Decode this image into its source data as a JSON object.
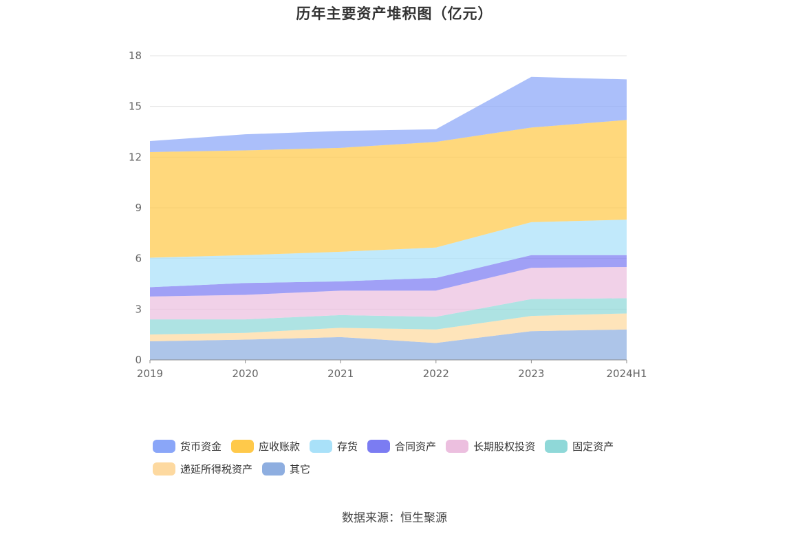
{
  "source": "数据来源：恒生聚源",
  "chart_data": {
    "type": "area",
    "stacked": true,
    "title": "历年主要资产堆积图（亿元）",
    "categories": [
      "2019",
      "2020",
      "2021",
      "2022",
      "2023",
      "2024H1"
    ],
    "yticks": [
      "0",
      "3",
      "6",
      "9",
      "12",
      "15",
      "18"
    ],
    "ylim": [
      0,
      18
    ],
    "grid": true,
    "legend_position": "bottom",
    "series": [
      {
        "name": "其它",
        "color": "#8eaee0",
        "values": [
          1.1,
          1.2,
          1.35,
          1.0,
          1.7,
          1.8
        ]
      },
      {
        "name": "递延所得税资产",
        "color": "#fdd9a0",
        "values": [
          0.4,
          0.4,
          0.55,
          0.8,
          0.9,
          0.95
        ]
      },
      {
        "name": "固定资产",
        "color": "#8fd8d8",
        "values": [
          0.9,
          0.8,
          0.75,
          0.75,
          1.0,
          0.9
        ]
      },
      {
        "name": "长期股权投资",
        "color": "#ecbfdf",
        "values": [
          1.35,
          1.45,
          1.45,
          1.55,
          1.85,
          1.85
        ]
      },
      {
        "name": "合同资产",
        "color": "#7b7cf2",
        "values": [
          0.55,
          0.7,
          0.55,
          0.75,
          0.75,
          0.7
        ]
      },
      {
        "name": "存货",
        "color": "#a9e1f9",
        "values": [
          1.75,
          1.65,
          1.75,
          1.8,
          1.95,
          2.1
        ]
      },
      {
        "name": "应收账款",
        "color": "#ffc94a",
        "values": [
          6.25,
          6.2,
          6.15,
          6.25,
          5.6,
          5.9
        ]
      },
      {
        "name": "货币资金",
        "color": "#8aa6f8",
        "values": [
          0.65,
          0.95,
          1.0,
          0.75,
          3.0,
          2.4
        ]
      }
    ],
    "legend_order": [
      "货币资金",
      "应收账款",
      "存货",
      "合同资产",
      "长期股权投资",
      "固定资产",
      "递延所得税资产",
      "其它"
    ]
  }
}
